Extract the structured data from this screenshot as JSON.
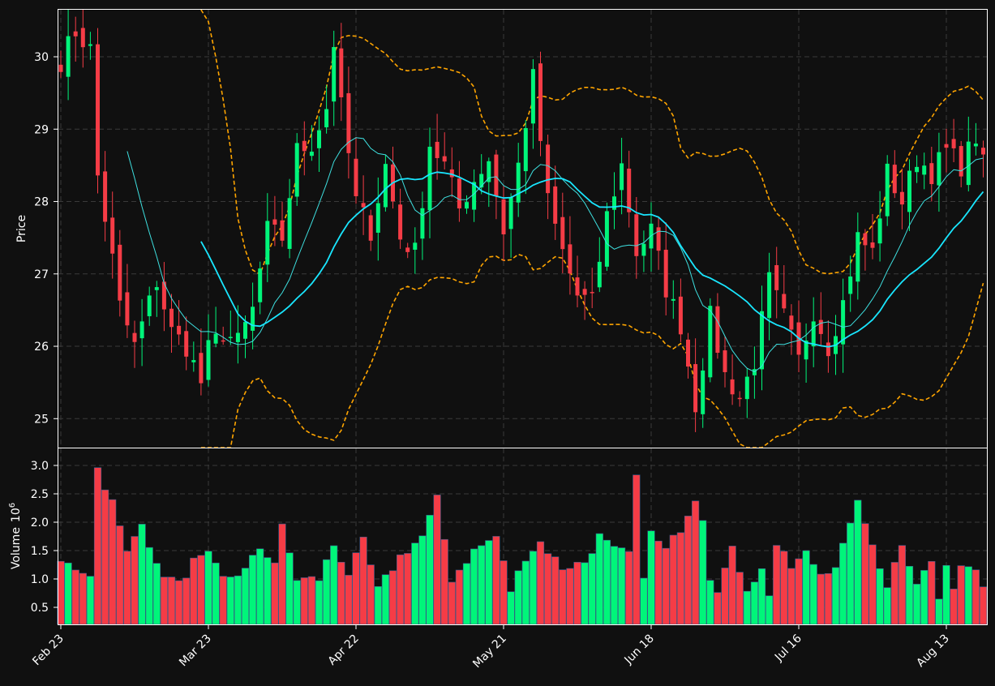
{
  "chart_data": {
    "type": "candlestick",
    "theme": {
      "background": "#101010",
      "up_color": "#00f57a",
      "down_color": "#f53c46",
      "frame_color": "#ffffff",
      "grid": true,
      "grid_style": "dashed"
    },
    "price_panel": {
      "ylabel": "Price",
      "ylim": [
        24.6,
        30.65
      ],
      "yticks": [
        25,
        26,
        27,
        28,
        29,
        30
      ],
      "overlays": [
        {
          "kind": "moving-average-fast",
          "color": "#3ee0e0"
        },
        {
          "kind": "moving-average-slow",
          "color": "#19e6ff"
        },
        {
          "kind": "bollinger-upper",
          "color": "#ffa500",
          "style": "dashed"
        },
        {
          "kind": "bollinger-lower",
          "color": "#ffa500",
          "style": "dashed"
        }
      ]
    },
    "volume_panel": {
      "ylabel": "Volume",
      "ylabel_exponent": "10",
      "ylabel_power": "6",
      "ylim": [
        0.2,
        3.3
      ],
      "yticks": [
        "0.5",
        "1.0",
        "1.5",
        "2.0",
        "2.5",
        "3.0"
      ],
      "yticks_values": [
        0.5,
        1.0,
        1.5,
        2.0,
        2.5,
        3.0
      ]
    },
    "x_ticks": [
      {
        "label": "Feb 23",
        "index": 0
      },
      {
        "label": "Mar 23",
        "index": 20
      },
      {
        "label": "Apr 22",
        "index": 40
      },
      {
        "label": "May 21",
        "index": 60
      },
      {
        "label": "Jun 18",
        "index": 80
      },
      {
        "label": "Jul 16",
        "index": 100
      },
      {
        "label": "Aug 13",
        "index": 120
      }
    ],
    "close_anchors": [
      [
        0,
        29.95
      ],
      [
        2,
        30.35
      ],
      [
        4,
        30.1
      ],
      [
        5,
        28.35
      ],
      [
        7,
        27.2
      ],
      [
        8,
        26.55
      ],
      [
        10,
        26.0
      ],
      [
        11,
        26.3
      ],
      [
        13,
        26.9
      ],
      [
        15,
        26.2
      ],
      [
        17,
        26.0
      ],
      [
        19,
        25.5
      ],
      [
        20,
        25.95
      ],
      [
        22,
        26.2
      ],
      [
        24,
        26.05
      ],
      [
        26,
        26.5
      ],
      [
        28,
        27.6
      ],
      [
        30,
        27.5
      ],
      [
        32,
        28.7
      ],
      [
        34,
        28.8
      ],
      [
        36,
        29.3
      ],
      [
        37,
        30.2
      ],
      [
        38,
        29.3
      ],
      [
        40,
        28.0
      ],
      [
        42,
        27.6
      ],
      [
        44,
        28.5
      ],
      [
        46,
        27.5
      ],
      [
        48,
        27.3
      ],
      [
        50,
        28.8
      ],
      [
        52,
        28.5
      ],
      [
        54,
        27.9
      ],
      [
        56,
        28.3
      ],
      [
        58,
        28.6
      ],
      [
        60,
        27.6
      ],
      [
        62,
        28.5
      ],
      [
        64,
        29.7
      ],
      [
        66,
        28.0
      ],
      [
        68,
        27.3
      ],
      [
        70,
        26.7
      ],
      [
        72,
        26.6
      ],
      [
        74,
        27.8
      ],
      [
        76,
        28.5
      ],
      [
        78,
        27.3
      ],
      [
        80,
        27.6
      ],
      [
        82,
        26.8
      ],
      [
        84,
        26.3
      ],
      [
        86,
        25.2
      ],
      [
        88,
        26.4
      ],
      [
        90,
        25.6
      ],
      [
        92,
        25.3
      ],
      [
        94,
        25.8
      ],
      [
        96,
        26.9
      ],
      [
        98,
        26.4
      ],
      [
        100,
        25.8
      ],
      [
        102,
        26.5
      ],
      [
        104,
        26.0
      ],
      [
        106,
        26.6
      ],
      [
        108,
        27.5
      ],
      [
        110,
        27.3
      ],
      [
        112,
        28.4
      ],
      [
        114,
        28.0
      ],
      [
        116,
        28.6
      ],
      [
        118,
        28.4
      ],
      [
        120,
        28.7
      ],
      [
        122,
        28.5
      ],
      [
        124,
        28.9
      ],
      [
        125,
        28.5
      ]
    ],
    "volume_anchors": [
      [
        0,
        1.3
      ],
      [
        2,
        1.2
      ],
      [
        4,
        1.1
      ],
      [
        5,
        2.95
      ],
      [
        6,
        2.65
      ],
      [
        7,
        2.35
      ],
      [
        9,
        1.45
      ],
      [
        11,
        2.05
      ],
      [
        13,
        1.2
      ],
      [
        16,
        0.9
      ],
      [
        18,
        1.3
      ],
      [
        20,
        1.4
      ],
      [
        22,
        1.0
      ],
      [
        25,
        1.15
      ],
      [
        27,
        1.55
      ],
      [
        29,
        1.3
      ],
      [
        30,
        1.9
      ],
      [
        32,
        1.0
      ],
      [
        35,
        1.0
      ],
      [
        37,
        1.6
      ],
      [
        39,
        1.1
      ],
      [
        41,
        1.65
      ],
      [
        43,
        0.8
      ],
      [
        46,
        1.4
      ],
      [
        49,
        1.75
      ],
      [
        51,
        2.4
      ],
      [
        53,
        1.0
      ],
      [
        56,
        1.5
      ],
      [
        59,
        1.75
      ],
      [
        61,
        0.8
      ],
      [
        63,
        1.4
      ],
      [
        65,
        1.65
      ],
      [
        68,
        1.2
      ],
      [
        71,
        1.3
      ],
      [
        73,
        1.75
      ],
      [
        75,
        1.5
      ],
      [
        77,
        1.45
      ],
      [
        78,
        2.75
      ],
      [
        79,
        1.1
      ],
      [
        80,
        1.8
      ],
      [
        82,
        1.5
      ],
      [
        84,
        1.9
      ],
      [
        86,
        2.45
      ],
      [
        87,
        2.1
      ],
      [
        88,
        1.05
      ],
      [
        89,
        0.85
      ],
      [
        91,
        1.5
      ],
      [
        93,
        0.85
      ],
      [
        95,
        1.15
      ],
      [
        96,
        0.75
      ],
      [
        97,
        1.6
      ],
      [
        99,
        1.2
      ],
      [
        101,
        1.45
      ],
      [
        103,
        1.1
      ],
      [
        105,
        1.25
      ],
      [
        107,
        1.9
      ],
      [
        108,
        2.45
      ],
      [
        109,
        1.9
      ],
      [
        110,
        1.6
      ],
      [
        112,
        0.9
      ],
      [
        114,
        1.65
      ],
      [
        116,
        0.95
      ],
      [
        118,
        1.3
      ],
      [
        119,
        0.65
      ],
      [
        120,
        1.15
      ],
      [
        121,
        0.9
      ],
      [
        122,
        1.25
      ],
      [
        124,
        1.25
      ],
      [
        125,
        0.95
      ]
    ]
  }
}
